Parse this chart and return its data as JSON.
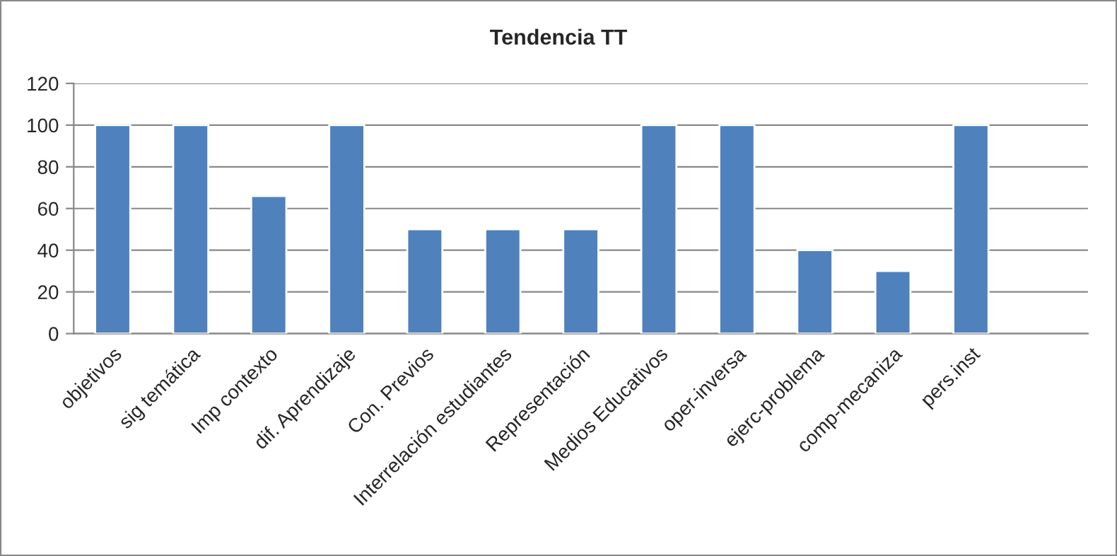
{
  "chart_data": {
    "type": "bar",
    "title": "Tendencia TT",
    "categories": [
      "objetivos",
      "sig temática",
      "Imp contexto",
      "dif. Aprendizaje",
      "Con. Previos",
      "Interrelación estudiantes",
      "Representación",
      "Medios Educativos",
      "oper-inversa",
      "ejerc-problema",
      "comp-mecaniza",
      "pers.inst",
      null
    ],
    "values": [
      100,
      100,
      66,
      100,
      50,
      50,
      50,
      100,
      100,
      40,
      30,
      100,
      null
    ],
    "color": "#4f81bd",
    "ylim": [
      0,
      120
    ],
    "yticks": [
      0,
      20,
      40,
      60,
      80,
      100,
      120
    ],
    "grid": "y",
    "legend": false
  }
}
